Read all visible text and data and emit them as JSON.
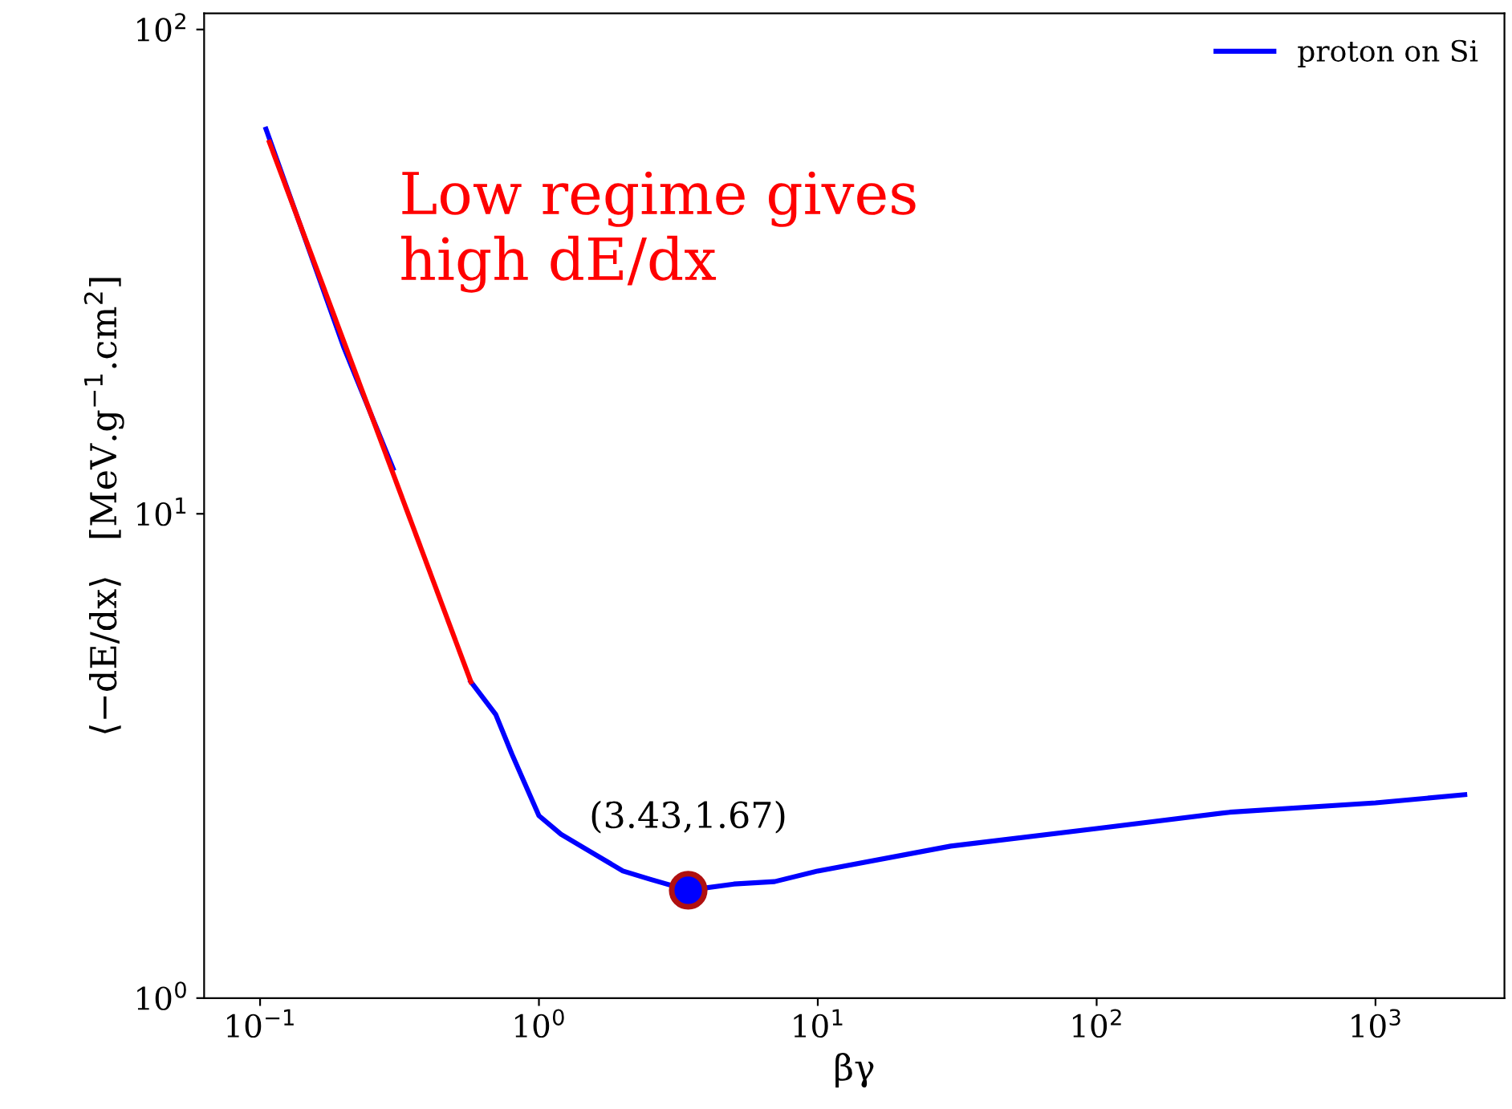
{
  "chart_data": {
    "type": "line",
    "xlabel": "βγ",
    "ylabel": "⟨−dE/dx⟩   [MeV.g$^{−1}$.cm$^{2}$]",
    "log": "xy",
    "xlim": [
      0.063,
      2900
    ],
    "ylim": [
      1,
      108
    ],
    "xticks": [
      {
        "value": 0.1,
        "label": "10$^{−1}$"
      },
      {
        "value": 1,
        "label": "10$^{0}$"
      },
      {
        "value": 10,
        "label": "10$^{1}$"
      },
      {
        "value": 100,
        "label": "10$^{2}$"
      },
      {
        "value": 1000,
        "label": "10$^{3}$"
      }
    ],
    "yticks": [
      {
        "value": 1,
        "label": "10$^{0}$"
      },
      {
        "value": 10,
        "label": "10$^{1}$"
      },
      {
        "value": 100,
        "label": "10$^{2}$"
      }
    ],
    "legend": "top right",
    "grid": false,
    "series": [
      {
        "name": "proton on Si",
        "color": "#0000ff",
        "x": [
          0.105,
          0.2,
          0.3,
          0.45,
          0.57,
          0.7,
          0.8,
          1,
          1.2,
          1.5,
          2,
          2.5,
          3.43,
          5,
          7,
          10,
          30,
          100,
          300,
          1000,
          2090
        ],
        "values": [
          62.3,
          22,
          12.4,
          null,
          4.5,
          3.85,
          3.19,
          2.38,
          2.18,
          2.02,
          1.83,
          1.76,
          1.67,
          1.72,
          1.74,
          1.83,
          2.06,
          2.24,
          2.42,
          2.53,
          2.63
        ]
      },
      {
        "color": "#ff0000",
        "x": [
          0.108,
          0.57
        ],
        "values": [
          58.5,
          4.5
        ]
      },
      {
        "type": "scatter",
        "marker": "circle",
        "color": "#0000ff",
        "x": [
          3.43
        ],
        "values": [
          1.67
        ]
      }
    ],
    "annotations": [
      {
        "text": "(3.43,1.67)",
        "x": 3.43,
        "y": 1.67
      },
      "Low regime gives\nhigh dE/dx"
    ]
  }
}
